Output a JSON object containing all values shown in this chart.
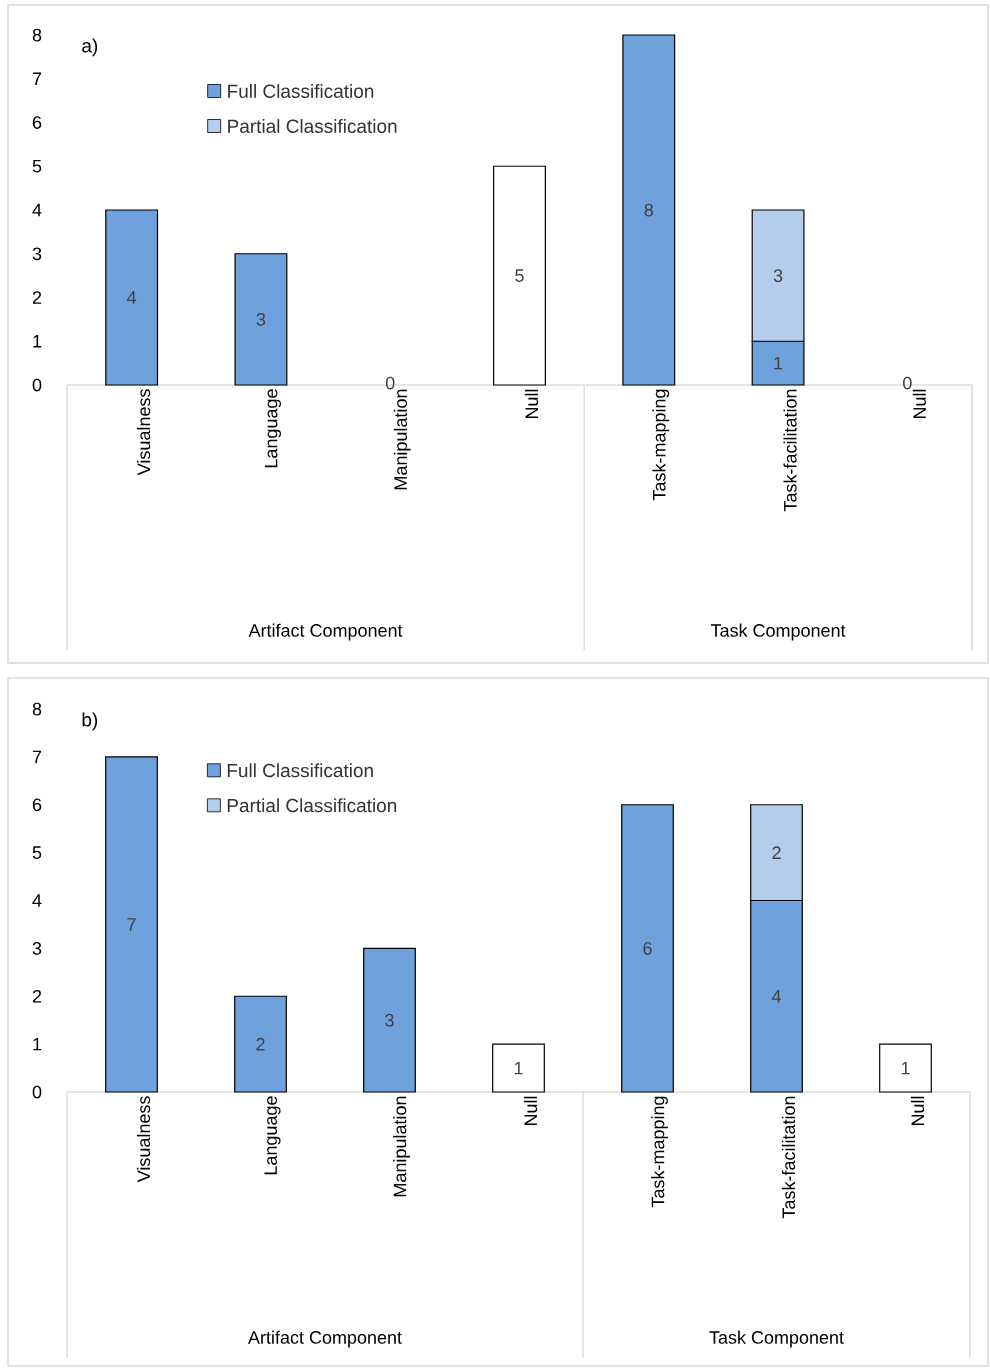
{
  "chart_data": [
    {
      "type": "bar",
      "title": "a)",
      "categories": [
        "Visualness",
        "Language",
        "Manipulation",
        "Null",
        "Task-mapping",
        "Task-facilitation",
        "Null"
      ],
      "stacked": true,
      "series": [
        {
          "name": "Full Classification",
          "color": "#6fa1dc",
          "colors": [
            "#6fa1dc",
            "#6fa1dc",
            "#6fa1dc",
            "#ffffff",
            "#6fa1dc",
            "#6fa1dc",
            "#6fa1dc"
          ],
          "values": [
            4,
            3,
            0,
            5,
            8,
            1,
            0
          ]
        },
        {
          "name": "Partial Classification",
          "color": "#b5cdec",
          "values": [
            null,
            null,
            null,
            null,
            null,
            3,
            null
          ]
        }
      ],
      "ylim": [
        0,
        8
      ],
      "yticks": [
        0,
        1,
        2,
        3,
        4,
        5,
        6,
        7,
        8
      ],
      "data_labels": true,
      "legend": "top left",
      "annotations": [
        "Artifact Component",
        "Task Component"
      ]
    },
    {
      "type": "bar",
      "title": "b)",
      "categories": [
        "Visualness",
        "Language",
        "Manipulation",
        "Null",
        "Task-mapping",
        "Task-facilitation",
        "Null"
      ],
      "stacked": true,
      "series": [
        {
          "name": "Full Classification",
          "color": "#6fa1dc",
          "colors": [
            "#6fa1dc",
            "#6fa1dc",
            "#6fa1dc",
            "#ffffff",
            "#6fa1dc",
            "#6fa1dc",
            "#ffffff"
          ],
          "values": [
            7,
            2,
            3,
            1,
            6,
            4,
            1
          ]
        },
        {
          "name": "Partial Classification",
          "color": "#b5cdec",
          "values": [
            null,
            null,
            null,
            null,
            null,
            2,
            null
          ]
        }
      ],
      "ylim": [
        0,
        8
      ],
      "yticks": [
        0,
        1,
        2,
        3,
        4,
        5,
        6,
        7,
        8
      ],
      "data_labels": true,
      "legend": "top left",
      "annotations": [
        "Artifact Component",
        "Task Component"
      ]
    }
  ]
}
